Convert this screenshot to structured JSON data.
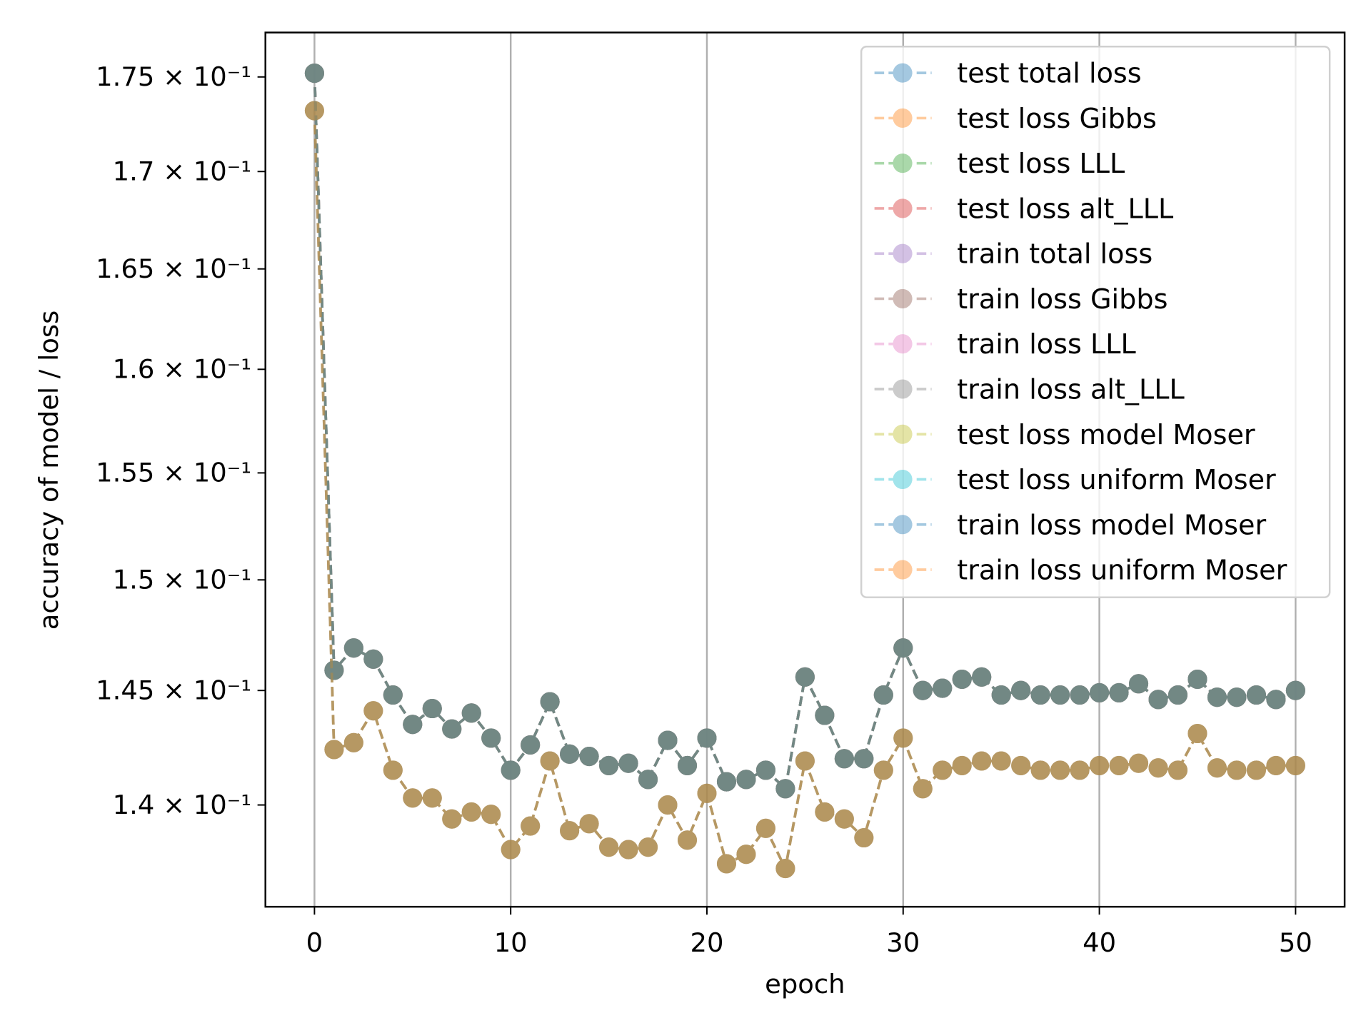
{
  "chart_data": {
    "type": "line",
    "xlabel": "epoch",
    "ylabel": "accuracy of model / loss",
    "yscale": "log",
    "grid": "x",
    "legend": "upper right",
    "xlim": [
      -2.5,
      52.5
    ],
    "ylim": [
      0.1357,
      0.1774
    ],
    "xticks": [
      0,
      10,
      20,
      30,
      40,
      50
    ],
    "yticks": [
      {
        "value": 0.14,
        "label": "1.4 × 10⁻¹"
      },
      {
        "value": 0.145,
        "label": "1.45 × 10⁻¹"
      },
      {
        "value": 0.15,
        "label": "1.5 × 10⁻¹"
      },
      {
        "value": 0.155,
        "label": "1.55 × 10⁻¹"
      },
      {
        "value": 0.16,
        "label": "1.6 × 10⁻¹"
      },
      {
        "value": 0.165,
        "label": "1.65 × 10⁻¹"
      },
      {
        "value": 0.17,
        "label": "1.7 × 10⁻¹"
      },
      {
        "value": 0.175,
        "label": "1.75 × 10⁻¹"
      }
    ],
    "x": [
      0,
      1,
      2,
      3,
      4,
      5,
      6,
      7,
      8,
      9,
      10,
      11,
      12,
      13,
      14,
      15,
      16,
      17,
      18,
      19,
      20,
      21,
      22,
      23,
      24,
      25,
      26,
      27,
      28,
      29,
      30,
      31,
      32,
      33,
      34,
      35,
      36,
      37,
      38,
      39,
      40,
      41,
      42,
      43,
      44,
      45,
      46,
      47,
      48,
      49,
      50
    ],
    "series": [
      {
        "name": "test total loss",
        "color": "#1f77b4",
        "values": [
          0.1752,
          0.1459,
          0.1469,
          0.1464,
          0.1448,
          0.1435,
          0.1442,
          0.1433,
          0.144,
          0.1429,
          0.1415,
          0.1426,
          0.1445,
          0.1422,
          0.1421,
          0.1417,
          0.1418,
          0.1411,
          0.1428,
          0.1417,
          0.1429,
          0.141,
          0.1411,
          0.1415,
          0.1407,
          0.1456,
          0.1439,
          0.142,
          0.142,
          0.1448,
          0.1469,
          0.145,
          0.1451,
          0.1455,
          0.1456,
          0.1448,
          0.145,
          0.1448,
          0.1448,
          0.1448,
          0.1449,
          0.1449,
          0.1453,
          0.1446,
          0.1448,
          0.1455,
          0.1447,
          0.1447,
          0.1448,
          0.1446,
          0.145
        ]
      },
      {
        "name": "test loss Gibbs",
        "color": "#ff7f0e",
        "values": [
          0.1732,
          0.1424,
          0.1427,
          0.1441,
          0.1415,
          0.1403,
          0.1403,
          0.1394,
          0.1397,
          0.1396,
          0.1381,
          0.1391,
          0.1419,
          0.1389,
          0.1392,
          0.1382,
          0.1381,
          0.1382,
          0.14,
          0.1385,
          0.1405,
          0.1375,
          0.1379,
          0.139,
          0.1373,
          0.1419,
          0.1397,
          0.1394,
          0.1386,
          0.1415,
          0.1429,
          0.1407,
          0.1415,
          0.1417,
          0.1419,
          0.1419,
          0.1417,
          0.1415,
          0.1415,
          0.1415,
          0.1417,
          0.1417,
          0.1418,
          0.1416,
          0.1415,
          0.1431,
          0.1416,
          0.1415,
          0.1415,
          0.1417,
          0.1417
        ]
      },
      {
        "name": "test loss LLL",
        "color": "#2ca02c",
        "values": [
          0.1752,
          0.1459,
          0.1469,
          0.1464,
          0.1448,
          0.1435,
          0.1442,
          0.1433,
          0.144,
          0.1429,
          0.1415,
          0.1426,
          0.1445,
          0.1422,
          0.1421,
          0.1417,
          0.1418,
          0.1411,
          0.1428,
          0.1417,
          0.1429,
          0.141,
          0.1411,
          0.1415,
          0.1407,
          0.1456,
          0.1439,
          0.142,
          0.142,
          0.1448,
          0.1469,
          0.145,
          0.1451,
          0.1455,
          0.1456,
          0.1448,
          0.145,
          0.1448,
          0.1448,
          0.1448,
          0.1449,
          0.1449,
          0.1453,
          0.1446,
          0.1448,
          0.1455,
          0.1447,
          0.1447,
          0.1448,
          0.1446,
          0.145
        ]
      },
      {
        "name": "test loss alt_LLL",
        "color": "#d62728",
        "values": [
          0.1752,
          0.1459,
          0.1469,
          0.1464,
          0.1448,
          0.1435,
          0.1442,
          0.1433,
          0.144,
          0.1429,
          0.1415,
          0.1426,
          0.1445,
          0.1422,
          0.1421,
          0.1417,
          0.1418,
          0.1411,
          0.1428,
          0.1417,
          0.1429,
          0.141,
          0.1411,
          0.1415,
          0.1407,
          0.1456,
          0.1439,
          0.142,
          0.142,
          0.1448,
          0.1469,
          0.145,
          0.1451,
          0.1455,
          0.1456,
          0.1448,
          0.145,
          0.1448,
          0.1448,
          0.1448,
          0.1449,
          0.1449,
          0.1453,
          0.1446,
          0.1448,
          0.1455,
          0.1447,
          0.1447,
          0.1448,
          0.1446,
          0.145
        ]
      },
      {
        "name": "train total loss",
        "color": "#9467bd",
        "values": [
          0.1752,
          0.1459,
          0.1469,
          0.1464,
          0.1448,
          0.1435,
          0.1442,
          0.1433,
          0.144,
          0.1429,
          0.1415,
          0.1426,
          0.1445,
          0.1422,
          0.1421,
          0.1417,
          0.1418,
          0.1411,
          0.1428,
          0.1417,
          0.1429,
          0.141,
          0.1411,
          0.1415,
          0.1407,
          0.1456,
          0.1439,
          0.142,
          0.142,
          0.1448,
          0.1469,
          0.145,
          0.1451,
          0.1455,
          0.1456,
          0.1448,
          0.145,
          0.1448,
          0.1448,
          0.1448,
          0.1449,
          0.1449,
          0.1453,
          0.1446,
          0.1448,
          0.1455,
          0.1447,
          0.1447,
          0.1448,
          0.1446,
          0.145
        ]
      },
      {
        "name": "train loss Gibbs",
        "color": "#8c564b",
        "values": [
          0.1732,
          0.1424,
          0.1427,
          0.1441,
          0.1415,
          0.1403,
          0.1403,
          0.1394,
          0.1397,
          0.1396,
          0.1381,
          0.1391,
          0.1419,
          0.1389,
          0.1392,
          0.1382,
          0.1381,
          0.1382,
          0.14,
          0.1385,
          0.1405,
          0.1375,
          0.1379,
          0.139,
          0.1373,
          0.1419,
          0.1397,
          0.1394,
          0.1386,
          0.1415,
          0.1429,
          0.1407,
          0.1415,
          0.1417,
          0.1419,
          0.1419,
          0.1417,
          0.1415,
          0.1415,
          0.1415,
          0.1417,
          0.1417,
          0.1418,
          0.1416,
          0.1415,
          0.1431,
          0.1416,
          0.1415,
          0.1415,
          0.1417,
          0.1417
        ]
      },
      {
        "name": "train loss LLL",
        "color": "#e377c2",
        "values": [
          0.1752,
          0.1459,
          0.1469,
          0.1464,
          0.1448,
          0.1435,
          0.1442,
          0.1433,
          0.144,
          0.1429,
          0.1415,
          0.1426,
          0.1445,
          0.1422,
          0.1421,
          0.1417,
          0.1418,
          0.1411,
          0.1428,
          0.1417,
          0.1429,
          0.141,
          0.1411,
          0.1415,
          0.1407,
          0.1456,
          0.1439,
          0.142,
          0.142,
          0.1448,
          0.1469,
          0.145,
          0.1451,
          0.1455,
          0.1456,
          0.1448,
          0.145,
          0.1448,
          0.1448,
          0.1448,
          0.1449,
          0.1449,
          0.1453,
          0.1446,
          0.1448,
          0.1455,
          0.1447,
          0.1447,
          0.1448,
          0.1446,
          0.145
        ]
      },
      {
        "name": "train loss alt_LLL",
        "color": "#7f7f7f",
        "values": [
          0.1752,
          0.1459,
          0.1469,
          0.1464,
          0.1448,
          0.1435,
          0.1442,
          0.1433,
          0.144,
          0.1429,
          0.1415,
          0.1426,
          0.1445,
          0.1422,
          0.1421,
          0.1417,
          0.1418,
          0.1411,
          0.1428,
          0.1417,
          0.1429,
          0.141,
          0.1411,
          0.1415,
          0.1407,
          0.1456,
          0.1439,
          0.142,
          0.142,
          0.1448,
          0.1469,
          0.145,
          0.1451,
          0.1455,
          0.1456,
          0.1448,
          0.145,
          0.1448,
          0.1448,
          0.1448,
          0.1449,
          0.1449,
          0.1453,
          0.1446,
          0.1448,
          0.1455,
          0.1447,
          0.1447,
          0.1448,
          0.1446,
          0.145
        ]
      },
      {
        "name": "test loss model Moser",
        "color": "#bcbd22",
        "values": [
          0.1752,
          0.1459,
          0.1469,
          0.1464,
          0.1448,
          0.1435,
          0.1442,
          0.1433,
          0.144,
          0.1429,
          0.1415,
          0.1426,
          0.1445,
          0.1422,
          0.1421,
          0.1417,
          0.1418,
          0.1411,
          0.1428,
          0.1417,
          0.1429,
          0.141,
          0.1411,
          0.1415,
          0.1407,
          0.1456,
          0.1439,
          0.142,
          0.142,
          0.1448,
          0.1469,
          0.145,
          0.1451,
          0.1455,
          0.1456,
          0.1448,
          0.145,
          0.1448,
          0.1448,
          0.1448,
          0.1449,
          0.1449,
          0.1453,
          0.1446,
          0.1448,
          0.1455,
          0.1447,
          0.1447,
          0.1448,
          0.1446,
          0.145
        ]
      },
      {
        "name": "test loss uniform Moser",
        "color": "#17becf",
        "values": [
          0.1732,
          0.1424,
          0.1427,
          0.1441,
          0.1415,
          0.1403,
          0.1403,
          0.1394,
          0.1397,
          0.1396,
          0.1381,
          0.1391,
          0.1419,
          0.1389,
          0.1392,
          0.1382,
          0.1381,
          0.1382,
          0.14,
          0.1385,
          0.1405,
          0.1375,
          0.1379,
          0.139,
          0.1373,
          0.1419,
          0.1397,
          0.1394,
          0.1386,
          0.1415,
          0.1429,
          0.1407,
          0.1415,
          0.1417,
          0.1419,
          0.1419,
          0.1417,
          0.1415,
          0.1415,
          0.1415,
          0.1417,
          0.1417,
          0.1418,
          0.1416,
          0.1415,
          0.1431,
          0.1416,
          0.1415,
          0.1415,
          0.1417,
          0.1417
        ]
      },
      {
        "name": "train loss model Moser",
        "color": "#1f77b4",
        "values": [
          0.1752,
          0.1459,
          0.1469,
          0.1464,
          0.1448,
          0.1435,
          0.1442,
          0.1433,
          0.144,
          0.1429,
          0.1415,
          0.1426,
          0.1445,
          0.1422,
          0.1421,
          0.1417,
          0.1418,
          0.1411,
          0.1428,
          0.1417,
          0.1429,
          0.141,
          0.1411,
          0.1415,
          0.1407,
          0.1456,
          0.1439,
          0.142,
          0.142,
          0.1448,
          0.1469,
          0.145,
          0.1451,
          0.1455,
          0.1456,
          0.1448,
          0.145,
          0.1448,
          0.1448,
          0.1448,
          0.1449,
          0.1449,
          0.1453,
          0.1446,
          0.1448,
          0.1455,
          0.1447,
          0.1447,
          0.1448,
          0.1446,
          0.145
        ]
      },
      {
        "name": "train loss uniform Moser",
        "color": "#ff7f0e",
        "values": [
          0.1732,
          0.1424,
          0.1427,
          0.1441,
          0.1415,
          0.1403,
          0.1403,
          0.1394,
          0.1397,
          0.1396,
          0.1381,
          0.1391,
          0.1419,
          0.1389,
          0.1392,
          0.1382,
          0.1381,
          0.1382,
          0.14,
          0.1385,
          0.1405,
          0.1375,
          0.1379,
          0.139,
          0.1373,
          0.1419,
          0.1397,
          0.1394,
          0.1386,
          0.1415,
          0.1429,
          0.1407,
          0.1415,
          0.1417,
          0.1419,
          0.1419,
          0.1417,
          0.1415,
          0.1415,
          0.1415,
          0.1417,
          0.1417,
          0.1418,
          0.1416,
          0.1415,
          0.1431,
          0.1416,
          0.1415,
          0.1415,
          0.1417,
          0.1417
        ]
      }
    ]
  }
}
